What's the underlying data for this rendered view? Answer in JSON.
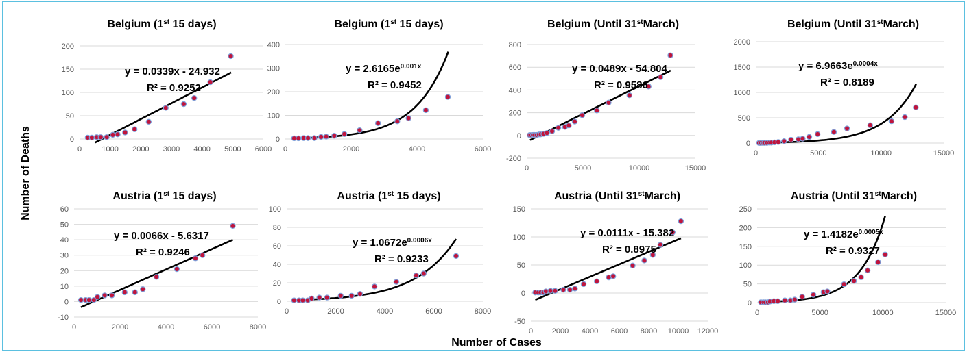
{
  "figure": {
    "ylabel": "Number of Deaths",
    "xlabel": "Number of Cases"
  },
  "colors": {
    "marker_fill": "#c0143c",
    "marker_edge": "#7f9fd8",
    "trend": "#000000",
    "grid": "#d9d9d9"
  },
  "chart_data": [
    {
      "type": "scatter",
      "title": "Belgium (1st 15 days)",
      "title_parts": [
        "Belgium (1",
        "st",
        " 15 days)"
      ],
      "xticks": [
        "0",
        "1000",
        "2000",
        "3000",
        "4000",
        "5000",
        "6000"
      ],
      "yticks": [
        "0",
        "50",
        "100",
        "150",
        "200"
      ],
      "xlim": [
        0,
        6000
      ],
      "ylim": [
        0,
        200
      ],
      "points": [
        [
          267,
          3
        ],
        [
          400,
          3
        ],
        [
          559,
          4
        ],
        [
          689,
          4
        ],
        [
          886,
          4
        ],
        [
          1085,
          9
        ],
        [
          1243,
          10
        ],
        [
          1486,
          14
        ],
        [
          1795,
          21
        ],
        [
          2257,
          37
        ],
        [
          2815,
          67
        ],
        [
          3401,
          75
        ],
        [
          3743,
          88
        ],
        [
          4269,
          122
        ],
        [
          4937,
          178
        ]
      ],
      "trendline": {
        "kind": "linear",
        "a": 0.0339,
        "b": -24.932,
        "x_range": [
          500,
          4950
        ]
      },
      "equation": [
        "y = 0.0339x - 24.932",
        "R² = 0.9252"
      ],
      "eq_pos": "upper-left"
    },
    {
      "type": "scatter",
      "title": "Belgium (1st 15 days)",
      "title_parts": [
        "Belgium (1",
        "st",
        " 15 days)"
      ],
      "xticks": [
        "0",
        "2000",
        "4000",
        "6000"
      ],
      "yticks": [
        "0",
        "100",
        "200",
        "300",
        "400"
      ],
      "xlim": [
        0,
        6000
      ],
      "ylim": [
        0,
        400
      ],
      "points": [
        [
          267,
          3
        ],
        [
          400,
          3
        ],
        [
          559,
          4
        ],
        [
          689,
          4
        ],
        [
          886,
          4
        ],
        [
          1085,
          9
        ],
        [
          1243,
          10
        ],
        [
          1486,
          14
        ],
        [
          1795,
          21
        ],
        [
          2257,
          37
        ],
        [
          2815,
          67
        ],
        [
          3401,
          75
        ],
        [
          3743,
          88
        ],
        [
          4269,
          122
        ],
        [
          4937,
          178
        ]
      ],
      "trendline": {
        "kind": "exponential",
        "a": 2.6165,
        "b": 0.001,
        "x_range": [
          267,
          4950
        ]
      },
      "equation": [
        "y = 2.6165e^0.001x",
        "R² = 0.9452"
      ],
      "eq_pos": "upper-left"
    },
    {
      "type": "scatter",
      "title": "Belgium (Until 31stMarch)",
      "title_parts": [
        "Belgium (Until 31",
        "st",
        "March)"
      ],
      "xticks": [
        "0",
        "5000",
        "10000",
        "15000"
      ],
      "yticks": [
        "-200",
        "0",
        "200",
        "400",
        "600",
        "800"
      ],
      "xlim": [
        0,
        15000
      ],
      "ylim": [
        -200,
        800
      ],
      "points": [
        [
          267,
          3
        ],
        [
          400,
          3
        ],
        [
          559,
          4
        ],
        [
          689,
          4
        ],
        [
          886,
          4
        ],
        [
          1085,
          9
        ],
        [
          1243,
          10
        ],
        [
          1486,
          14
        ],
        [
          1795,
          21
        ],
        [
          2257,
          37
        ],
        [
          2815,
          67
        ],
        [
          3401,
          75
        ],
        [
          3743,
          88
        ],
        [
          4269,
          122
        ],
        [
          4937,
          178
        ],
        [
          6235,
          220
        ],
        [
          7284,
          289
        ],
        [
          9134,
          353
        ],
        [
          10836,
          431
        ],
        [
          11899,
          513
        ],
        [
          12775,
          705
        ]
      ],
      "trendline": {
        "kind": "linear",
        "a": 0.0489,
        "b": -54.804,
        "x_range": [
          300,
          12800
        ]
      },
      "equation": [
        "y = 0.0489x - 54.804",
        "R² = 0.9586"
      ],
      "eq_pos": "upper-left"
    },
    {
      "type": "scatter",
      "title": "Belgium (Until 31stMarch)",
      "title_parts": [
        "Belgium (Until 31",
        "st",
        "March)"
      ],
      "xticks": [
        "0",
        "5000",
        "10000",
        "15000"
      ],
      "yticks": [
        "0",
        "500",
        "1000",
        "1500",
        "2000"
      ],
      "xlim": [
        0,
        15000
      ],
      "ylim": [
        0,
        2000
      ],
      "points": [
        [
          267,
          3
        ],
        [
          400,
          3
        ],
        [
          559,
          4
        ],
        [
          689,
          4
        ],
        [
          886,
          4
        ],
        [
          1085,
          9
        ],
        [
          1243,
          10
        ],
        [
          1486,
          14
        ],
        [
          1795,
          21
        ],
        [
          2257,
          37
        ],
        [
          2815,
          67
        ],
        [
          3401,
          75
        ],
        [
          3743,
          88
        ],
        [
          4269,
          122
        ],
        [
          4937,
          178
        ],
        [
          6235,
          220
        ],
        [
          7284,
          289
        ],
        [
          9134,
          353
        ],
        [
          10836,
          431
        ],
        [
          11899,
          513
        ],
        [
          12775,
          705
        ]
      ],
      "trendline": {
        "kind": "exponential",
        "a": 6.9663,
        "b": 0.0004,
        "x_range": [
          267,
          12800
        ]
      },
      "equation": [
        "y = 6.9663e^0.0004x",
        "R² = 0.8189"
      ],
      "eq_pos": "upper-left"
    },
    {
      "type": "scatter",
      "title": "Austria (1st 15 days)",
      "title_parts": [
        "Austria (1",
        "st",
        " 15 days)"
      ],
      "xticks": [
        "0",
        "2000",
        "4000",
        "6000",
        "8000"
      ],
      "yticks": [
        "-10",
        "0",
        "10",
        "20",
        "30",
        "40",
        "50",
        "60"
      ],
      "xlim": [
        0,
        8000
      ],
      "ylim": [
        -10,
        60
      ],
      "points": [
        [
          300,
          1
        ],
        [
          504,
          1
        ],
        [
          655,
          1
        ],
        [
          860,
          1
        ],
        [
          1018,
          3
        ],
        [
          1332,
          4
        ],
        [
          1646,
          4
        ],
        [
          2203,
          6
        ],
        [
          2649,
          6
        ],
        [
          2992,
          8
        ],
        [
          3582,
          16
        ],
        [
          4474,
          21
        ],
        [
          5283,
          28
        ],
        [
          5588,
          30
        ],
        [
          6909,
          49
        ]
      ],
      "trendline": {
        "kind": "linear",
        "a": 0.0066,
        "b": -5.6317,
        "x_range": [
          300,
          6909
        ]
      },
      "equation": [
        "y = 0.0066x - 5.6317",
        "R² = 0.9246"
      ],
      "eq_pos": "upper-left"
    },
    {
      "type": "scatter",
      "title": "Austria (1st 15 days)",
      "title_parts": [
        "Austria (1",
        "st",
        " 15 days)"
      ],
      "xticks": [
        "0",
        "2000",
        "4000",
        "6000",
        "8000"
      ],
      "yticks": [
        "0",
        "20",
        "40",
        "60",
        "80",
        "100"
      ],
      "xlim": [
        0,
        8000
      ],
      "ylim": [
        0,
        100
      ],
      "points": [
        [
          300,
          1
        ],
        [
          504,
          1
        ],
        [
          655,
          1
        ],
        [
          860,
          1
        ],
        [
          1018,
          3
        ],
        [
          1332,
          4
        ],
        [
          1646,
          4
        ],
        [
          2203,
          6
        ],
        [
          2649,
          6
        ],
        [
          2992,
          8
        ],
        [
          3582,
          16
        ],
        [
          4474,
          21
        ],
        [
          5283,
          28
        ],
        [
          5588,
          30
        ],
        [
          6909,
          49
        ]
      ],
      "trendline": {
        "kind": "exponential",
        "a": 1.0672,
        "b": 0.0006,
        "x_range": [
          300,
          6909
        ]
      },
      "equation": [
        "y = 1.0672e^0.0006x",
        "R² = 0.9233"
      ],
      "eq_pos": "upper-left"
    },
    {
      "type": "scatter",
      "title": "Austria (Until 31stMarch)",
      "title_parts": [
        "Austria (Until 31",
        "st",
        "March)"
      ],
      "xticks": [
        "0",
        "2000",
        "4000",
        "6000",
        "8000",
        "10000",
        "12000"
      ],
      "yticks": [
        "-50",
        "0",
        "50",
        "100",
        "150"
      ],
      "xlim": [
        0,
        12000
      ],
      "ylim": [
        -50,
        150
      ],
      "points": [
        [
          300,
          1
        ],
        [
          504,
          1
        ],
        [
          655,
          1
        ],
        [
          860,
          1
        ],
        [
          1018,
          3
        ],
        [
          1332,
          4
        ],
        [
          1646,
          4
        ],
        [
          2203,
          6
        ],
        [
          2649,
          6
        ],
        [
          2992,
          8
        ],
        [
          3582,
          16
        ],
        [
          4474,
          21
        ],
        [
          5283,
          28
        ],
        [
          5588,
          30
        ],
        [
          6909,
          49
        ],
        [
          7697,
          58
        ],
        [
          8271,
          68
        ],
        [
          8788,
          86
        ],
        [
          9618,
          108
        ],
        [
          10180,
          128
        ]
      ],
      "trendline": {
        "kind": "linear",
        "a": 0.0111,
        "b": -15.382,
        "x_range": [
          300,
          10180
        ]
      },
      "equation": [
        "y = 0.0111x - 15.382",
        "R² = 0.8975"
      ],
      "eq_pos": "upper-left"
    },
    {
      "type": "scatter",
      "title": "Austria (Until 31stMarch)",
      "title_parts": [
        "Austria (Until 31",
        "st",
        "March)"
      ],
      "xticks": [
        "0",
        "5000",
        "10000",
        "15000"
      ],
      "yticks": [
        "0",
        "50",
        "100",
        "150",
        "200",
        "250"
      ],
      "xlim": [
        0,
        15000
      ],
      "ylim": [
        0,
        250
      ],
      "points": [
        [
          300,
          1
        ],
        [
          504,
          1
        ],
        [
          655,
          1
        ],
        [
          860,
          1
        ],
        [
          1018,
          3
        ],
        [
          1332,
          4
        ],
        [
          1646,
          4
        ],
        [
          2203,
          6
        ],
        [
          2649,
          6
        ],
        [
          2992,
          8
        ],
        [
          3582,
          16
        ],
        [
          4474,
          21
        ],
        [
          5283,
          28
        ],
        [
          5588,
          30
        ],
        [
          6909,
          49
        ],
        [
          7697,
          58
        ],
        [
          8271,
          68
        ],
        [
          8788,
          86
        ],
        [
          9618,
          108
        ],
        [
          10180,
          128
        ]
      ],
      "trendline": {
        "kind": "exponential",
        "a": 1.4182,
        "b": 0.0005,
        "x_range": [
          300,
          10180
        ]
      },
      "equation": [
        "y = 1.4182e^0.0005x",
        "R² = 0.9327"
      ],
      "eq_pos": "upper-left"
    }
  ]
}
